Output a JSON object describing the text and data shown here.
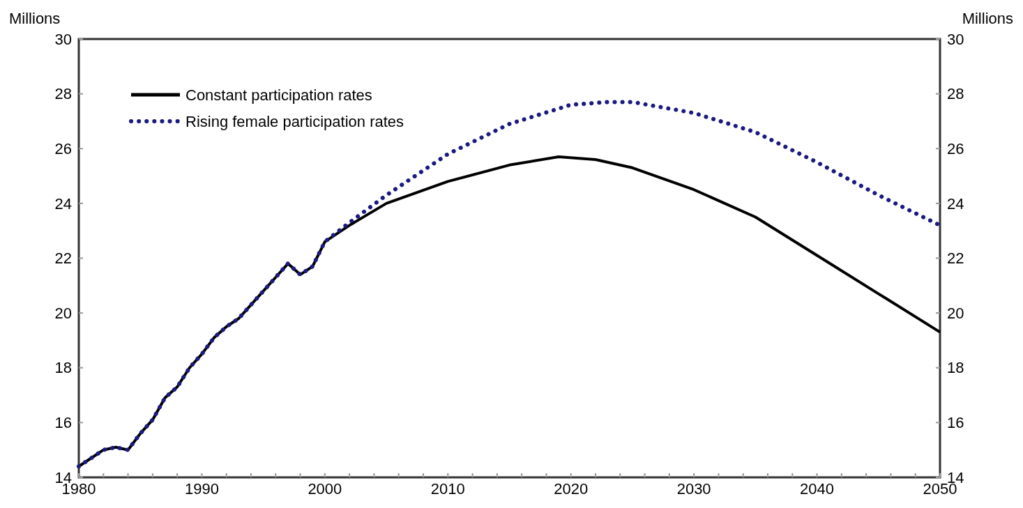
{
  "chart_data": {
    "type": "line",
    "ylabel": "Millions",
    "y2label": "Millions",
    "xlim": [
      1980,
      2050
    ],
    "xticks": [
      1980,
      {
        "value": 1982,
        "label": null
      },
      {
        "value": 1984,
        "label": null
      },
      {
        "value": 1986,
        "label": null
      },
      {
        "value": 1988,
        "label": null
      },
      1990,
      {
        "value": 1992,
        "label": null
      },
      {
        "value": 1994,
        "label": null
      },
      {
        "value": 1996,
        "label": null
      },
      {
        "value": 1998,
        "label": null
      },
      2000,
      {
        "value": 2002,
        "label": null
      },
      {
        "value": 2004,
        "label": null
      },
      {
        "value": 2006,
        "label": null
      },
      {
        "value": 2008,
        "label": null
      },
      2010,
      {
        "value": 2012,
        "label": null
      },
      {
        "value": 2014,
        "label": null
      },
      {
        "value": 2016,
        "label": null
      },
      {
        "value": 2018,
        "label": null
      },
      2020,
      {
        "value": 2022,
        "label": null
      },
      {
        "value": 2024,
        "label": null
      },
      {
        "value": 2026,
        "label": null
      },
      {
        "value": 2028,
        "label": null
      },
      2030,
      {
        "value": 2032,
        "label": null
      },
      {
        "value": 2034,
        "label": null
      },
      {
        "value": 2036,
        "label": null
      },
      {
        "value": 2038,
        "label": null
      },
      2040,
      {
        "value": 2042,
        "label": null
      },
      {
        "value": 2044,
        "label": null
      },
      {
        "value": 2046,
        "label": null
      },
      {
        "value": 2048,
        "label": null
      },
      2050
    ],
    "ylim": [
      14,
      30
    ],
    "yticks": [
      14,
      16,
      18,
      20,
      22,
      24,
      26,
      28,
      30
    ],
    "y2lim": [
      14,
      30
    ],
    "y2ticks": [
      14,
      16,
      18,
      20,
      22,
      24,
      26,
      28,
      30
    ],
    "grid": false,
    "legend": "top left",
    "series": [
      {
        "name": "Constant participation rates",
        "color": "#000000",
        "line_style": "solid",
        "x": [
          1980,
          1981,
          1982,
          1983,
          1984,
          1985,
          1986,
          1987,
          1988,
          1989,
          1990,
          1991,
          1992,
          1993,
          1994,
          1995,
          1996,
          1997,
          1998,
          1999,
          2000,
          2002,
          2005,
          2010,
          2015,
          2019,
          2022,
          2025,
          2030,
          2035,
          2040,
          2045,
          2050
        ],
        "values": [
          14.4,
          14.7,
          15.0,
          15.1,
          15.0,
          15.6,
          16.1,
          16.9,
          17.3,
          18.0,
          18.5,
          19.1,
          19.5,
          19.8,
          20.3,
          20.8,
          21.3,
          21.8,
          21.4,
          21.7,
          22.6,
          23.2,
          24.0,
          24.8,
          25.4,
          25.7,
          25.6,
          25.3,
          24.5,
          23.5,
          22.1,
          20.7,
          19.3
        ]
      },
      {
        "name": "Rising female participation rates",
        "color": "#1a1a80",
        "line_style": "dotted",
        "x": [
          1980,
          1981,
          1982,
          1983,
          1984,
          1985,
          1986,
          1987,
          1988,
          1989,
          1990,
          1991,
          1992,
          1993,
          1994,
          1995,
          1996,
          1997,
          1998,
          1999,
          2000,
          2002,
          2005,
          2010,
          2015,
          2020,
          2023,
          2025,
          2030,
          2035,
          2040,
          2045,
          2050
        ],
        "values": [
          14.4,
          14.7,
          15.0,
          15.1,
          15.0,
          15.6,
          16.1,
          16.9,
          17.3,
          18.0,
          18.5,
          19.1,
          19.5,
          19.8,
          20.3,
          20.8,
          21.3,
          21.8,
          21.4,
          21.7,
          22.6,
          23.3,
          24.3,
          25.8,
          26.9,
          27.6,
          27.7,
          27.7,
          27.3,
          26.6,
          25.5,
          24.3,
          23.2
        ]
      }
    ]
  }
}
